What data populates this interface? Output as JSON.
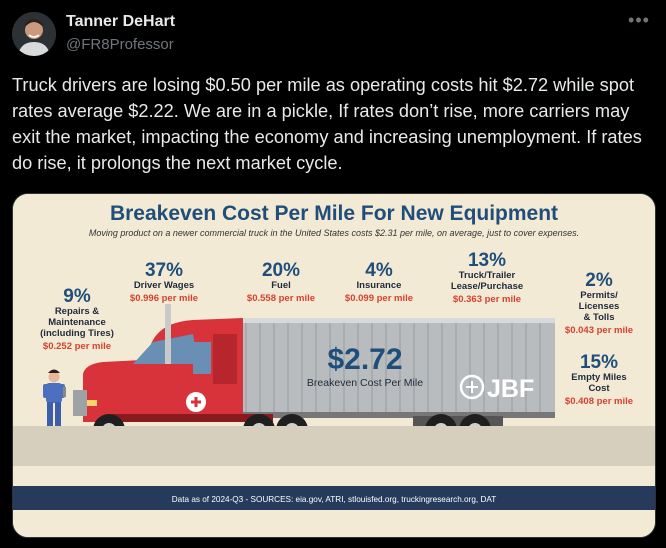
{
  "author": {
    "name": "Tanner DeHart",
    "handle": "@FR8Professor"
  },
  "tweet": {
    "text": "Truck drivers are losing $0.50 per mile as operating costs hit $2.72 while spot rates average $2.22. We are in a pickle, If rates don’t rise, more carriers may exit the market, impacting the economy and increasing unemployment. If rates do rise, it prolongs the next market cycle."
  },
  "infographic": {
    "title": "Breakeven Cost Per Mile For New Equipment",
    "subtitle": "Moving product on a newer commercial truck in the United States costs $2.31 per mile, on average, just to cover expenses.",
    "total_value": "$2.72",
    "total_label": "Breakeven Cost Per Mile",
    "logo_text": "JBF",
    "footer": "Data as of 2024-Q3 - SOURCES: eia.gov, ATRI, stlouisfed.org, truckingresearch.org, DAT",
    "items": [
      {
        "pct": "9%",
        "label": [
          "Repairs &",
          "Maintenance",
          "(including Tires)"
        ],
        "cost": "$0.252 per mile"
      },
      {
        "pct": "37%",
        "label": [
          "Driver Wages"
        ],
        "cost": "$0.996 per mile"
      },
      {
        "pct": "20%",
        "label": [
          "Fuel"
        ],
        "cost": "$0.558 per mile"
      },
      {
        "pct": "4%",
        "label": [
          "Insurance"
        ],
        "cost": "$0.099 per mile"
      },
      {
        "pct": "13%",
        "label": [
          "Truck/Trailer",
          "Lease/Purchase"
        ],
        "cost": "$0.363 per mile"
      },
      {
        "pct": "2%",
        "label": [
          "Permits/",
          "Licenses",
          "& Tolls"
        ],
        "cost": "$0.043 per mile"
      },
      {
        "pct": "15%",
        "label": [
          "Empty Miles",
          "Cost"
        ],
        "cost": "$0.408 per mile"
      }
    ]
  },
  "colors": {
    "title_blue": "#1f4e7a",
    "cost_red": "#d6412f",
    "truck_red": "#d8323a",
    "trailer_gray": "#b9bcbf",
    "footer_navy": "#263b5c",
    "poster_bg": "#f3ead6"
  },
  "icons": {
    "more": "more-horizontal-icon",
    "logo": "jbf-logo-icon"
  }
}
